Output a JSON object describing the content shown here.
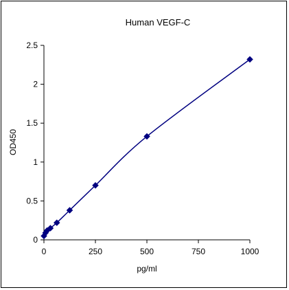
{
  "chart_data": {
    "type": "scatter",
    "title": "Human VEGF-C",
    "xlabel": "pg/ml",
    "ylabel": "OD450",
    "xlim": [
      0,
      1000
    ],
    "ylim": [
      0,
      2.5
    ],
    "xticks": [
      0,
      250,
      500,
      750,
      1000
    ],
    "xtick_labels": [
      "0",
      "250",
      "500",
      "750",
      "1000"
    ],
    "yticks": [
      0,
      0.5,
      1,
      1.5,
      2,
      2.5
    ],
    "ytick_labels": [
      "0",
      "0.5",
      "1",
      "1.5",
      "2",
      "2.5"
    ],
    "grid": false,
    "legend": "none",
    "marker": "diamond",
    "fit_line": "smooth curve",
    "series": [
      {
        "x": [
          0,
          7.8,
          15.6,
          31.25,
          62.5,
          125,
          250,
          500,
          1000
        ],
        "y": [
          0.05,
          0.09,
          0.12,
          0.15,
          0.22,
          0.38,
          0.7,
          1.33,
          2.32
        ]
      }
    ],
    "colors": {
      "series": "#000080",
      "axis": "#000000"
    }
  }
}
